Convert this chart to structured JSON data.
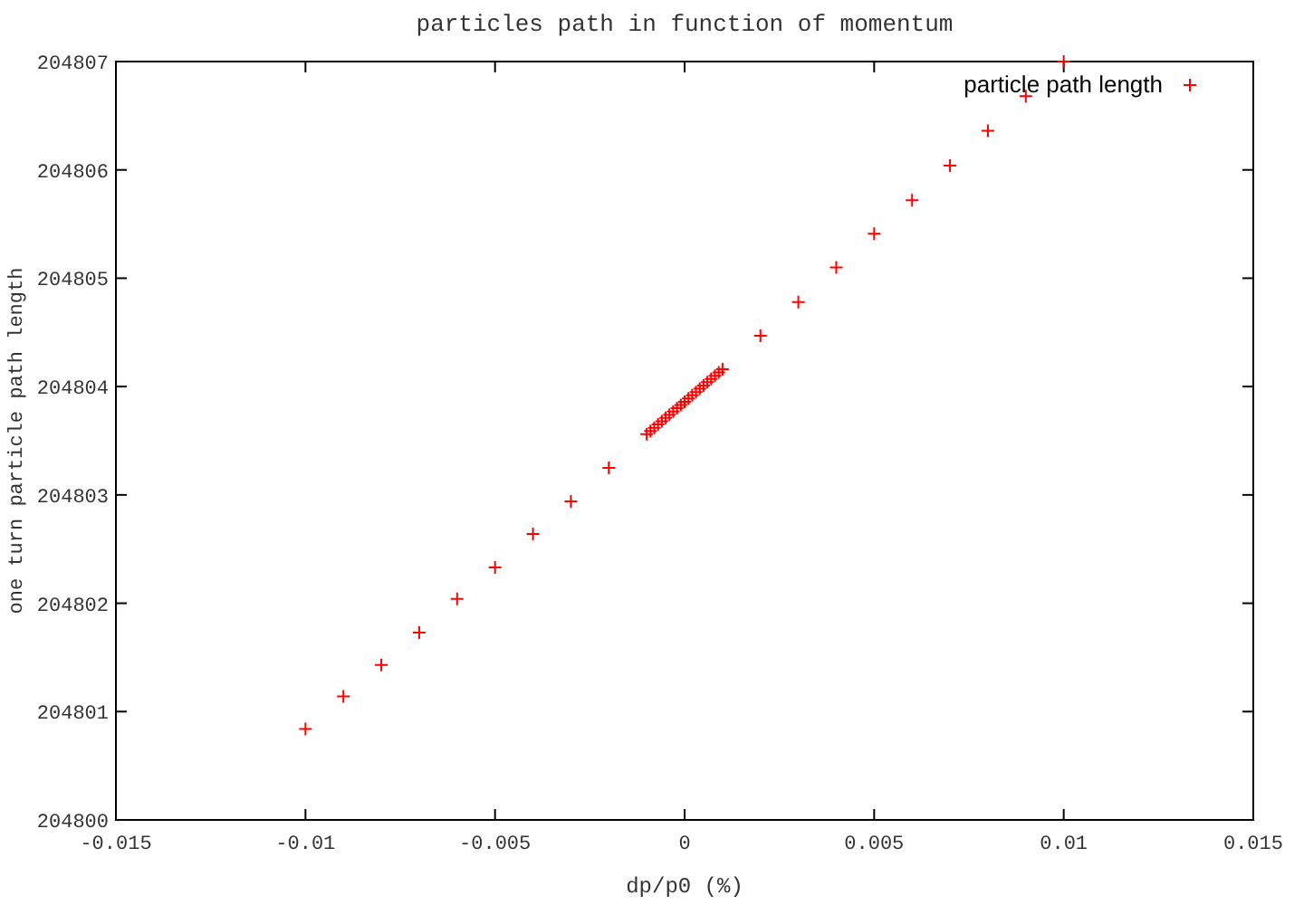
{
  "chart_data": {
    "type": "scatter",
    "title": "particles path in function of momentum",
    "xlabel": "dp/p0 (%)",
    "ylabel": "one turn particle path length",
    "x": [
      -0.01,
      -0.009,
      -0.008,
      -0.007,
      -0.006,
      -0.005,
      -0.004,
      -0.003,
      -0.002,
      -0.001,
      -0.0009,
      -0.0008,
      -0.0007,
      -0.0006,
      -0.0005,
      -0.0004,
      -0.0003,
      -0.0002,
      -0.0001,
      0,
      0.0001,
      0.0002,
      0.0003,
      0.0004,
      0.0005,
      0.0006,
      0.0007,
      0.0008,
      0.0009,
      0.001,
      0.002,
      0.003,
      0.004,
      0.005,
      0.006,
      0.007,
      0.008,
      0.009,
      0.01
    ],
    "series": [
      {
        "name": "particle path length",
        "color": "#ff0000",
        "values": [
          204800.84,
          204801.14,
          204801.43,
          204801.73,
          204802.04,
          204802.33,
          204802.64,
          204802.94,
          204803.25,
          204803.56,
          204803.59,
          204803.62,
          204803.65,
          204803.68,
          204803.71,
          204803.74,
          204803.77,
          204803.8,
          204803.83,
          204803.86,
          204803.89,
          204803.92,
          204803.95,
          204803.98,
          204804.01,
          204804.04,
          204804.07,
          204804.1,
          204804.13,
          204804.16,
          204804.47,
          204804.78,
          204805.1,
          204805.41,
          204805.72,
          204806.04,
          204806.36,
          204806.68,
          204807.0
        ]
      }
    ],
    "xlim": [
      -0.015,
      0.015
    ],
    "xticks": [
      -0.015,
      -0.01,
      -0.005,
      0,
      0.005,
      0.01,
      0.015
    ],
    "ylim": [
      204800,
      204807
    ],
    "yticks": [
      204800,
      204801,
      204802,
      204803,
      204804,
      204805,
      204806,
      204807
    ],
    "grid": false,
    "legend": "top right",
    "marker": "cross"
  }
}
